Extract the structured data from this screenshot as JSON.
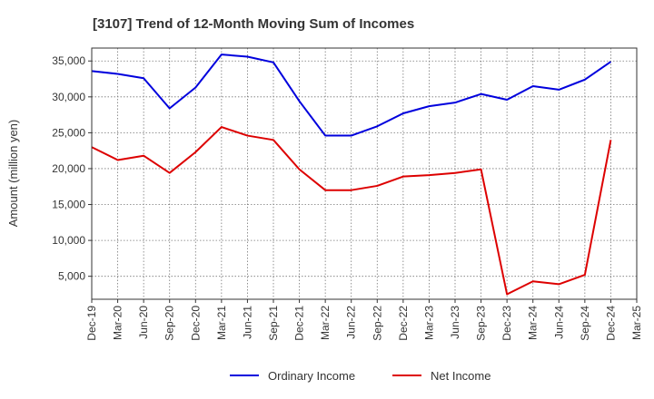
{
  "chart_data": {
    "type": "line",
    "title": "[3107]  Trend of 12-Month Moving Sum of Incomes",
    "xlabel": "",
    "ylabel": "Amount (million yen)",
    "categories": [
      "Dec-19",
      "Mar-20",
      "Jun-20",
      "Sep-20",
      "Dec-20",
      "Mar-21",
      "Jun-21",
      "Sep-21",
      "Dec-21",
      "Mar-22",
      "Jun-22",
      "Sep-22",
      "Dec-22",
      "Mar-23",
      "Jun-23",
      "Sep-23",
      "Dec-23",
      "Mar-24",
      "Jun-24",
      "Sep-24",
      "Dec-24",
      "Mar-25"
    ],
    "ylim": [
      1800,
      36800
    ],
    "yticks": [
      5000,
      10000,
      15000,
      20000,
      25000,
      30000,
      35000
    ],
    "ytick_labels": [
      "5,000",
      "10,000",
      "15,000",
      "20,000",
      "25,000",
      "30,000",
      "35,000"
    ],
    "grid": true,
    "legend_position": "bottom",
    "series": [
      {
        "name": "Ordinary Income",
        "color": "#0000dd",
        "values": [
          33600,
          33200,
          32600,
          28400,
          31300,
          35900,
          35600,
          34800,
          29400,
          24600,
          24600,
          25900,
          27700,
          28700,
          29200,
          30400,
          29600,
          31500,
          31000,
          32400,
          34900,
          null
        ]
      },
      {
        "name": "Net Income",
        "color": "#dd0000",
        "values": [
          23000,
          21200,
          21800,
          19400,
          22300,
          25800,
          24600,
          24000,
          19900,
          17000,
          17000,
          17600,
          18900,
          19100,
          19400,
          19900,
          2500,
          4300,
          3900,
          5200,
          24000,
          null
        ]
      }
    ]
  }
}
